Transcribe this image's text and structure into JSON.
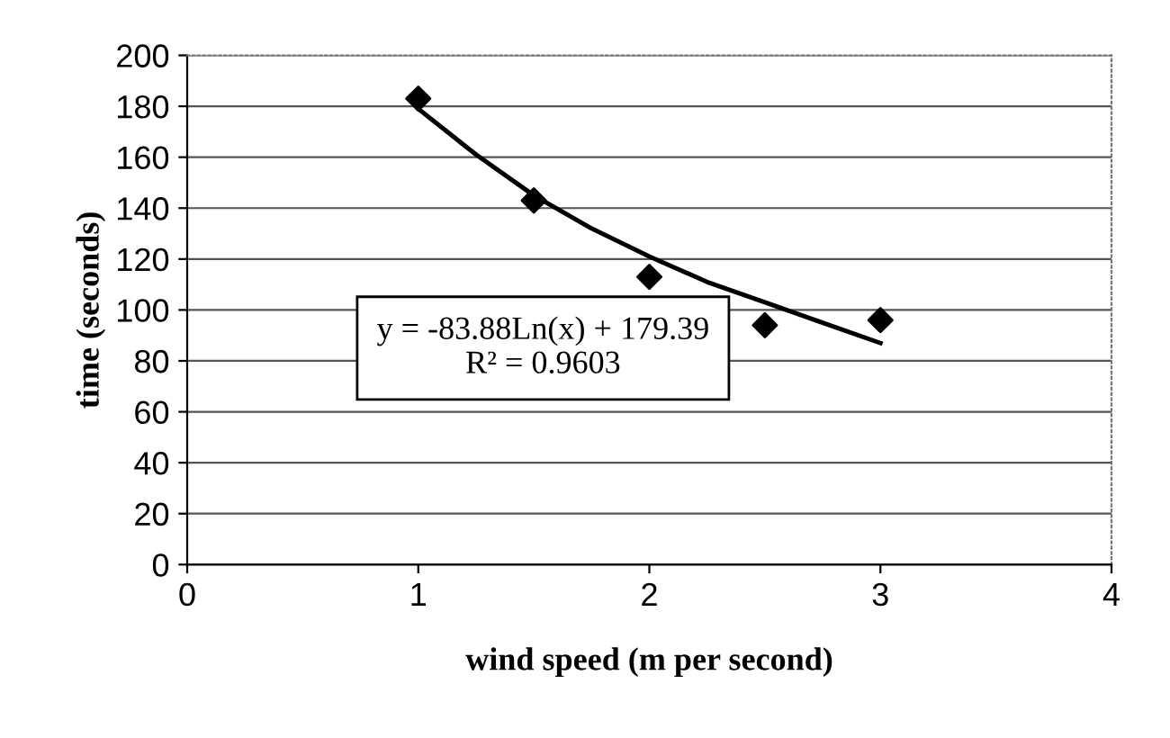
{
  "chart_data": {
    "type": "scatter",
    "xlabel": "wind speed (m per second)",
    "ylabel": "time (seconds)",
    "x": [
      1,
      1.5,
      2,
      2.5,
      3
    ],
    "series": [
      {
        "color": "#000000",
        "marker": "diamond",
        "values": [
          183,
          143,
          113,
          94,
          96
        ]
      },
      {
        "type": "line",
        "color": "#000000",
        "line_style": "solid",
        "x": [
          1,
          1.25,
          1.5,
          1.75,
          2,
          2.25,
          2.5,
          2.75,
          3
        ],
        "values": [
          179,
          161,
          145,
          132,
          121,
          111,
          103,
          95,
          87
        ]
      }
    ],
    "xlim": [
      0,
      4
    ],
    "xticks": [
      0,
      1,
      2,
      3,
      4
    ],
    "ylim": [
      0,
      200
    ],
    "yticks": [
      0,
      20,
      40,
      60,
      80,
      100,
      120,
      140,
      160,
      180,
      200
    ],
    "grid": "y",
    "legend": false,
    "annotations": [
      "y = -83.88Ln(x) + 179.39",
      "R² = 0.9603"
    ]
  }
}
